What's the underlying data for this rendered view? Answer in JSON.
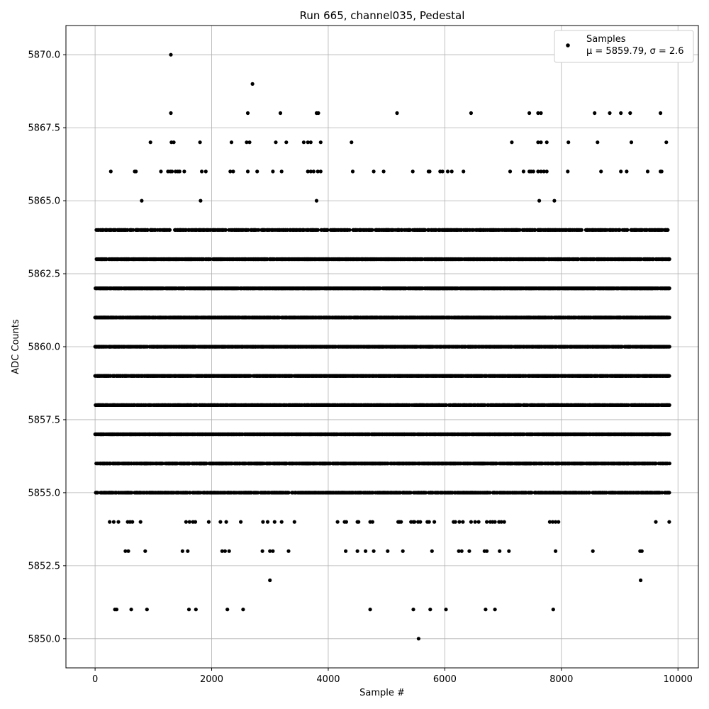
{
  "chart_data": {
    "type": "scatter",
    "title": "Run 665, channel035, Pedestal",
    "xlabel": "Sample #",
    "ylabel": "ADC Counts",
    "xlim": [
      -500,
      10350
    ],
    "ylim": [
      5849,
      5871
    ],
    "xticks": [
      0,
      2000,
      4000,
      6000,
      8000,
      10000
    ],
    "yticks": [
      5850.0,
      5852.5,
      5855.0,
      5857.5,
      5860.0,
      5862.5,
      5865.0,
      5867.5,
      5870.0
    ],
    "xtick_labels": [
      "0",
      "2000",
      "4000",
      "6000",
      "8000",
      "10000"
    ],
    "ytick_labels": [
      "5850.0",
      "5852.5",
      "5855.0",
      "5857.5",
      "5860.0",
      "5862.5",
      "5865.0",
      "5867.5",
      "5870.0"
    ],
    "grid": true,
    "legend_position": "top-right",
    "marker_color": "#000000",
    "series": [
      {
        "name": "Samples",
        "legend_line2": "μ = 5859.79, σ = 2.6",
        "n_samples": 9856,
        "mean": 5859.79,
        "sigma": 2.6,
        "discrete_levels": [
          {
            "y": 5870,
            "x": [
              1300
            ]
          },
          {
            "y": 5869,
            "x": [
              2700
            ]
          },
          {
            "y": 5868,
            "x": [
              1300,
              2620,
              3180,
              3800,
              3830,
              5180,
              6450,
              7450,
              7600,
              7650,
              8570,
              8830,
              9020,
              9180,
              9700
            ]
          },
          {
            "y": 5867,
            "x": [
              950,
              1310,
              1350,
              1800,
              2340,
              2600,
              2650,
              3100,
              3280,
              3580,
              3650,
              3700,
              3870,
              4400,
              7150,
              7600,
              7650,
              7750,
              8120,
              8620,
              9200,
              9800
            ]
          },
          {
            "y": 5866,
            "x": [
              270,
              680,
              700,
              1130,
              1250,
              1290,
              1320,
              1380,
              1420,
              1450,
              1530,
              1830,
              1900,
              2320,
              2370,
              2620,
              2780,
              3050,
              3200,
              3650,
              3700,
              3750,
              3820,
              3870,
              4420,
              4780,
              4950,
              5450,
              5720,
              5740,
              5920,
              5960,
              6050,
              6120,
              6320,
              7120,
              7350,
              7450,
              7480,
              7520,
              7600,
              7650,
              7700,
              7750,
              8110,
              8680,
              9020,
              9120,
              9480,
              9700,
              9720
            ]
          },
          {
            "y": 5865,
            "x": [
              800,
              1810,
              3800,
              7620,
              7880
            ]
          },
          {
            "y": 5864,
            "density": 0.62
          },
          {
            "y": 5863,
            "density": 0.85
          },
          {
            "y": 5862,
            "density": 0.97
          },
          {
            "y": 5861,
            "density": 0.99
          },
          {
            "y": 5860,
            "density": 0.9
          },
          {
            "y": 5859,
            "density": 1.0
          },
          {
            "y": 5858,
            "density": 0.78
          },
          {
            "y": 5857,
            "density": 0.93
          },
          {
            "y": 5856,
            "density": 0.76
          },
          {
            "y": 5855,
            "density": 0.6
          },
          {
            "y": 5854,
            "x": [
              250,
              320,
              400,
              560,
              600,
              640,
              780,
              1560,
              1620,
              1680,
              1720,
              1950,
              2150,
              2250,
              2500,
              2880,
              2960,
              3080,
              3200,
              3420,
              4160,
              4280,
              4310,
              4500,
              4520,
              4720,
              4760,
              5200,
              5220,
              5250,
              5420,
              5460,
              5480,
              5540,
              5580,
              5700,
              5730,
              5820,
              6150,
              6180,
              6250,
              6310,
              6450,
              6520,
              6580,
              6720,
              6780,
              6820,
              6860,
              6930,
              6970,
              7020,
              7800,
              7850,
              7900,
              7950,
              9620,
              9850
            ]
          },
          {
            "y": 5853,
            "x": [
              520,
              570,
              860,
              1500,
              1590,
              2180,
              2230,
              2300,
              2870,
              3000,
              3050,
              3320,
              4300,
              4500,
              4640,
              4780,
              5020,
              5280,
              5780,
              6240,
              6290,
              6420,
              6680,
              6720,
              6940,
              7100,
              7900,
              8540,
              9350,
              9380
            ]
          },
          {
            "y": 5852,
            "x": [
              3000,
              9360
            ]
          },
          {
            "y": 5851,
            "x": [
              340,
              370,
              620,
              890,
              1610,
              1730,
              2270,
              2540,
              4720,
              5460,
              5750,
              6020,
              6700,
              6860,
              7860
            ]
          },
          {
            "y": 5850,
            "x": [
              5550
            ]
          }
        ]
      }
    ]
  }
}
